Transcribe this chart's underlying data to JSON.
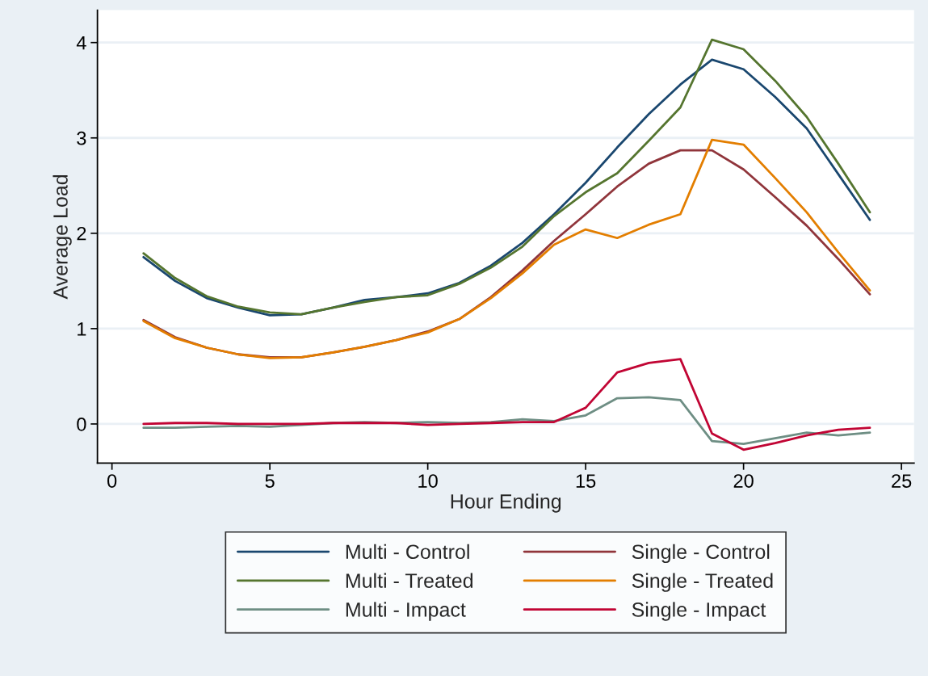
{
  "chart_data": {
    "type": "line",
    "xlabel": "Hour Ending",
    "ylabel": "Average Load",
    "x": [
      1,
      2,
      3,
      4,
      5,
      6,
      7,
      8,
      9,
      10,
      11,
      12,
      13,
      14,
      15,
      16,
      17,
      18,
      19,
      20,
      21,
      22,
      23,
      24
    ],
    "xlim": [
      -0.46,
      25.4
    ],
    "xticks": [
      0,
      5,
      10,
      15,
      20,
      25
    ],
    "ylim": [
      -0.41,
      4.34
    ],
    "yticks": [
      0,
      1,
      2,
      3,
      4
    ],
    "grid": "y",
    "legend": "bottom",
    "line_style": "solid",
    "marker": "none",
    "series": [
      {
        "name": "Multi - Control",
        "color": "#1a476f",
        "values": [
          1.75,
          1.5,
          1.32,
          1.22,
          1.14,
          1.15,
          1.22,
          1.3,
          1.33,
          1.37,
          1.48,
          1.66,
          1.9,
          2.2,
          2.53,
          2.9,
          3.25,
          3.56,
          3.82,
          3.72,
          3.43,
          3.1,
          2.62,
          2.14
        ]
      },
      {
        "name": "Multi - Treated",
        "color": "#55752f",
        "values": [
          1.79,
          1.53,
          1.34,
          1.23,
          1.17,
          1.15,
          1.22,
          1.28,
          1.33,
          1.35,
          1.47,
          1.64,
          1.86,
          2.18,
          2.43,
          2.63,
          2.97,
          3.32,
          4.03,
          3.93,
          3.6,
          3.22,
          2.73,
          2.22
        ]
      },
      {
        "name": "Multi - Impact",
        "color": "#6e8e84",
        "values": [
          -0.04,
          -0.04,
          -0.03,
          -0.02,
          -0.03,
          -0.01,
          0.01,
          0.02,
          0.01,
          0.02,
          0.01,
          0.02,
          0.05,
          0.03,
          0.09,
          0.27,
          0.28,
          0.25,
          -0.18,
          -0.21,
          -0.15,
          -0.09,
          -0.12,
          -0.09
        ]
      },
      {
        "name": "Single - Control",
        "color": "#90353b",
        "values": [
          1.09,
          0.91,
          0.8,
          0.73,
          0.7,
          0.7,
          0.75,
          0.81,
          0.88,
          0.97,
          1.1,
          1.33,
          1.61,
          1.92,
          2.2,
          2.49,
          2.73,
          2.87,
          2.87,
          2.67,
          2.38,
          2.08,
          1.73,
          1.36
        ]
      },
      {
        "name": "Single - Treated",
        "color": "#e37e00",
        "values": [
          1.08,
          0.9,
          0.8,
          0.73,
          0.69,
          0.7,
          0.75,
          0.81,
          0.88,
          0.96,
          1.1,
          1.32,
          1.58,
          1.88,
          2.04,
          1.95,
          2.09,
          2.2,
          2.98,
          2.93,
          2.58,
          2.22,
          1.8,
          1.4
        ]
      },
      {
        "name": "Single - Impact",
        "color": "#c10534",
        "values": [
          0.0,
          0.01,
          0.01,
          0.0,
          0.0,
          0.0,
          0.01,
          0.01,
          0.01,
          -0.01,
          0.0,
          0.01,
          0.02,
          0.02,
          0.17,
          0.54,
          0.64,
          0.68,
          -0.1,
          -0.27,
          -0.2,
          -0.12,
          -0.06,
          -0.04
        ]
      }
    ]
  }
}
